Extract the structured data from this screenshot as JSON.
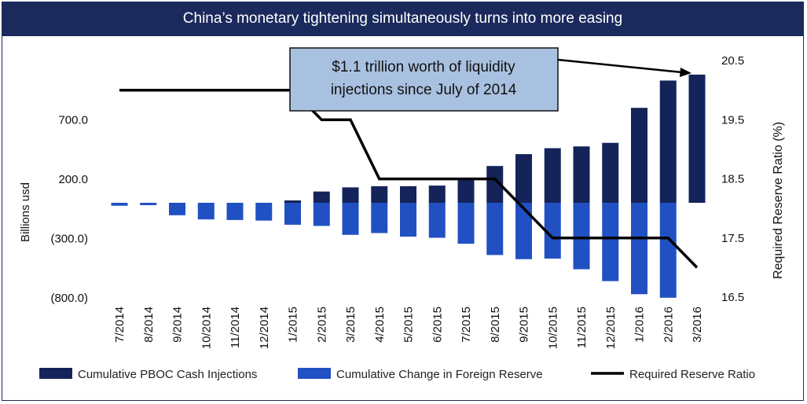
{
  "title": "China’s monetary tightening simultaneously turns into more easing",
  "annotation": {
    "line1": "$1.1 trillion worth of liquidity",
    "line2": "injections since July of 2014"
  },
  "colors": {
    "title_bg": "#1b2a5c",
    "pboc": "#14245a",
    "reserve": "#2150c2",
    "rrr": "#000000",
    "annotation_bg": "#a9c1e0"
  },
  "chart_data": {
    "type": "bar",
    "categories": [
      "7/2014",
      "8/2014",
      "9/2014",
      "10/2014",
      "11/2014",
      "12/2014",
      "1/2015",
      "2/2015",
      "3/2015",
      "4/2015",
      "5/2015",
      "6/2015",
      "7/2015",
      "8/2015",
      "9/2015",
      "10/2015",
      "11/2015",
      "12/2015",
      "1/2016",
      "2/2016",
      "3/2016"
    ],
    "series": [
      {
        "name": "Cumulative PBOC Cash Injections",
        "values": [
          0,
          0,
          0,
          0,
          0,
          0,
          20,
          95,
          130,
          140,
          140,
          145,
          195,
          310,
          410,
          460,
          475,
          505,
          800,
          1030,
          1080
        ]
      },
      {
        "name": "Cumulative Change in Foreign Reserve",
        "values": [
          -25,
          -20,
          -105,
          -140,
          -145,
          -150,
          -185,
          -195,
          -270,
          -255,
          -285,
          -295,
          -345,
          -440,
          -475,
          -470,
          -560,
          -660,
          -770,
          -800,
          null
        ]
      },
      {
        "name": "Required Reserve Ratio",
        "values": [
          20.0,
          20.0,
          20.0,
          20.0,
          20.0,
          20.0,
          20.0,
          19.5,
          19.5,
          18.5,
          18.5,
          18.5,
          18.5,
          18.5,
          18.0,
          17.5,
          17.5,
          17.5,
          17.5,
          17.5,
          17.0
        ],
        "axis": "right"
      }
    ],
    "ylabel": "Billions usd",
    "ylabel_right": "Required Reserve Ratio (%)",
    "ylim": [
      -800,
      1100
    ],
    "ylim_right": [
      16.5,
      21.25
    ],
    "yticks": [
      700,
      200,
      -300,
      -800
    ],
    "ytick_labels": [
      "700.0",
      "200.0",
      "(300.0)",
      "(800.0)"
    ],
    "yticks_right": [
      20.5,
      19.5,
      18.5,
      17.5,
      16.5
    ],
    "ytick_labels_right": [
      "20.5",
      "19.5",
      "18.5",
      "17.5",
      "16.5"
    ],
    "legend_position": "bottom",
    "grid": false
  }
}
